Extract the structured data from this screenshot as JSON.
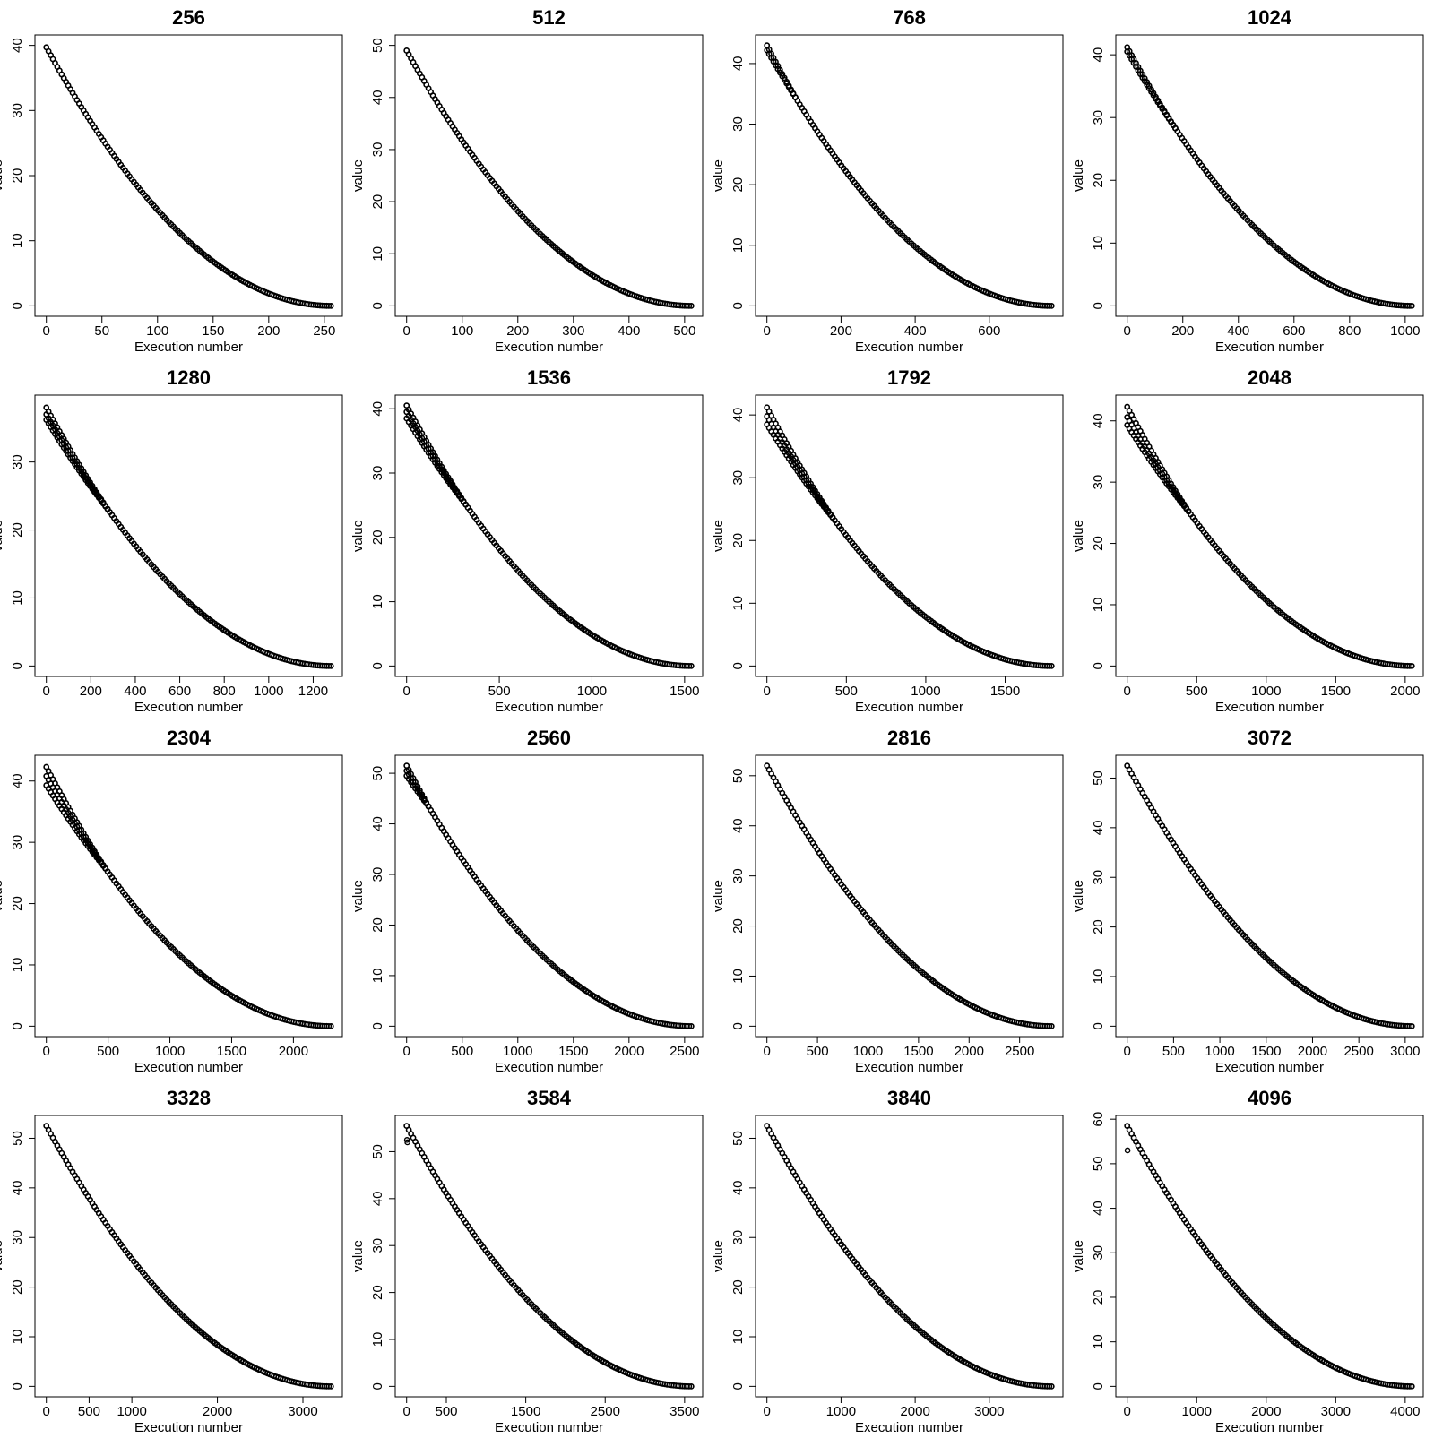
{
  "figure": {
    "xlabel": "Execution number",
    "ylabel": "value"
  },
  "chart_data": [
    {
      "type": "scatter",
      "title": "256",
      "n": 256,
      "xlabel": "Execution number",
      "ylabel": "value",
      "xlim": [
        0,
        256
      ],
      "ylim": [
        0,
        40
      ],
      "y_start": 39.7,
      "xticks": [
        0,
        50,
        100,
        150,
        200,
        250
      ],
      "yticks": [
        0,
        10,
        20,
        30,
        40
      ],
      "spread_until": 0,
      "start_values": [
        39.7
      ]
    },
    {
      "type": "scatter",
      "title": "512",
      "n": 512,
      "xlabel": "Execution number",
      "ylabel": "value",
      "xlim": [
        0,
        512
      ],
      "ylim": [
        0,
        50
      ],
      "y_start": 49.0,
      "xticks": [
        0,
        100,
        200,
        300,
        400,
        500
      ],
      "yticks": [
        0,
        10,
        20,
        30,
        40,
        50
      ],
      "spread_until": 0,
      "start_values": [
        49.0
      ]
    },
    {
      "type": "scatter",
      "title": "768",
      "n": 768,
      "xlabel": "Execution number",
      "ylabel": "value",
      "xlim": [
        0,
        768
      ],
      "ylim": [
        0,
        43
      ],
      "y_start": 42.5,
      "xticks": [
        0,
        200,
        400,
        600
      ],
      "yticks": [
        0,
        10,
        20,
        30,
        40
      ],
      "spread_until": 80,
      "start_values": [
        43.0,
        42.2
      ]
    },
    {
      "type": "scatter",
      "title": "1024",
      "n": 1024,
      "xlabel": "Execution number",
      "ylabel": "value",
      "xlim": [
        0,
        1024
      ],
      "ylim": [
        0,
        41.5
      ],
      "y_start": 41.0,
      "xticks": [
        0,
        200,
        400,
        600,
        800,
        1000
      ],
      "yticks": [
        0,
        10,
        20,
        30,
        40
      ],
      "spread_until": 180,
      "start_values": [
        41.2,
        40.5
      ]
    },
    {
      "type": "scatter",
      "title": "1280",
      "n": 1280,
      "xlabel": "Execution number",
      "ylabel": "value",
      "xlim": [
        0,
        1280
      ],
      "ylim": [
        0,
        38.3
      ],
      "y_start": 37.5,
      "xticks": [
        0,
        200,
        400,
        600,
        800,
        1000,
        1200
      ],
      "yticks": [
        0,
        10,
        20,
        30
      ],
      "spread_until": 280,
      "start_values": [
        38.0,
        37.0,
        36.2
      ]
    },
    {
      "type": "scatter",
      "title": "1536",
      "n": 1536,
      "xlabel": "Execution number",
      "ylabel": "value",
      "xlim": [
        0,
        1536
      ],
      "ylim": [
        0,
        40.5
      ],
      "y_start": 40.0,
      "xticks": [
        0,
        500,
        1000,
        1500
      ],
      "yticks": [
        0,
        10,
        20,
        30,
        40
      ],
      "spread_until": 320,
      "start_values": [
        40.5,
        39.5,
        38.5
      ]
    },
    {
      "type": "scatter",
      "title": "1792",
      "n": 1792,
      "xlabel": "Execution number",
      "ylabel": "value",
      "xlim": [
        0,
        1792
      ],
      "ylim": [
        0,
        41.5
      ],
      "y_start": 40.0,
      "xticks": [
        0,
        500,
        1000,
        1500
      ],
      "yticks": [
        0,
        10,
        20,
        30,
        40
      ],
      "spread_until": 420,
      "start_values": [
        41.2,
        39.8,
        38.5
      ]
    },
    {
      "type": "scatter",
      "title": "2048",
      "n": 2048,
      "xlabel": "Execution number",
      "ylabel": "value",
      "xlim": [
        0,
        2048
      ],
      "ylim": [
        0,
        42.5
      ],
      "y_start": 41.0,
      "xticks": [
        0,
        500,
        1000,
        1500,
        2000
      ],
      "yticks": [
        0,
        10,
        20,
        30,
        40
      ],
      "spread_until": 450,
      "start_values": [
        42.3,
        40.6,
        39.3
      ]
    },
    {
      "type": "scatter",
      "title": "2304",
      "n": 2304,
      "xlabel": "Execution number",
      "ylabel": "value",
      "xlim": [
        0,
        2304
      ],
      "ylim": [
        0,
        42.5
      ],
      "y_start": 41.0,
      "xticks": [
        0,
        500,
        1000,
        1500,
        2000
      ],
      "yticks": [
        0,
        10,
        20,
        30,
        40
      ],
      "spread_until": 480,
      "start_values": [
        42.3,
        40.8,
        39.3
      ]
    },
    {
      "type": "scatter",
      "title": "2560",
      "n": 2560,
      "xlabel": "Execution number",
      "ylabel": "value",
      "xlim": [
        0,
        2560
      ],
      "ylim": [
        0,
        51.5
      ],
      "y_start": 51.0,
      "xticks": [
        0,
        500,
        1000,
        1500,
        2000,
        2500
      ],
      "yticks": [
        0,
        10,
        20,
        30,
        40,
        50
      ],
      "spread_until": 200,
      "start_values": [
        51.5,
        50.5,
        49.5
      ]
    },
    {
      "type": "scatter",
      "title": "2816",
      "n": 2816,
      "xlabel": "Execution number",
      "ylabel": "value",
      "xlim": [
        0,
        2816
      ],
      "ylim": [
        0,
        52
      ],
      "y_start": 52.0,
      "xticks": [
        0,
        500,
        1000,
        1500,
        2000,
        2500
      ],
      "yticks": [
        0,
        10,
        20,
        30,
        40,
        50
      ],
      "spread_until": 0,
      "start_values": [
        52.0
      ]
    },
    {
      "type": "scatter",
      "title": "3072",
      "n": 3072,
      "xlabel": "Execution number",
      "ylabel": "value",
      "xlim": [
        0,
        3072
      ],
      "ylim": [
        0,
        52.5
      ],
      "y_start": 52.5,
      "xticks": [
        0,
        500,
        1000,
        1500,
        2000,
        2500,
        3000
      ],
      "yticks": [
        0,
        10,
        20,
        30,
        40,
        50
      ],
      "spread_until": 0,
      "start_values": [
        52.5
      ]
    },
    {
      "type": "scatter",
      "title": "3328",
      "n": 3328,
      "xlabel": "Execution number",
      "ylabel": "value",
      "xlim": [
        0,
        3328
      ],
      "ylim": [
        0,
        52.5
      ],
      "y_start": 52.5,
      "xticks": [
        0,
        500,
        1000,
        2000,
        3000
      ],
      "yticks": [
        0,
        10,
        20,
        30,
        40,
        50
      ],
      "spread_until": 0,
      "start_values": [
        52.5
      ]
    },
    {
      "type": "scatter",
      "title": "3584",
      "n": 3584,
      "xlabel": "Execution number",
      "ylabel": "value",
      "xlim": [
        0,
        3584
      ],
      "ylim": [
        0,
        55.5
      ],
      "y_start": 55.5,
      "xticks": [
        0,
        500,
        1500,
        2500,
        3500
      ],
      "yticks": [
        0,
        10,
        20,
        30,
        40,
        50
      ],
      "spread_until": 0,
      "start_values": [
        55.5
      ],
      "outliers": [
        [
          5,
          52.5
        ],
        [
          10,
          52.0
        ]
      ]
    },
    {
      "type": "scatter",
      "title": "3840",
      "n": 3840,
      "xlabel": "Execution number",
      "ylabel": "value",
      "xlim": [
        0,
        3840
      ],
      "ylim": [
        0,
        52.5
      ],
      "y_start": 52.5,
      "xticks": [
        0,
        1000,
        2000,
        3000
      ],
      "yticks": [
        0,
        10,
        20,
        30,
        40,
        50
      ],
      "spread_until": 0,
      "start_values": [
        52.5
      ]
    },
    {
      "type": "scatter",
      "title": "4096",
      "n": 4096,
      "xlabel": "Execution number",
      "ylabel": "value",
      "xlim": [
        0,
        4096
      ],
      "ylim": [
        0,
        58.5
      ],
      "y_start": 58.5,
      "xticks": [
        0,
        1000,
        2000,
        3000,
        4000
      ],
      "yticks": [
        0,
        10,
        20,
        30,
        40,
        50,
        60
      ],
      "spread_until": 0,
      "start_values": [
        58.5
      ],
      "outliers": [
        [
          5,
          53.0
        ]
      ]
    }
  ]
}
